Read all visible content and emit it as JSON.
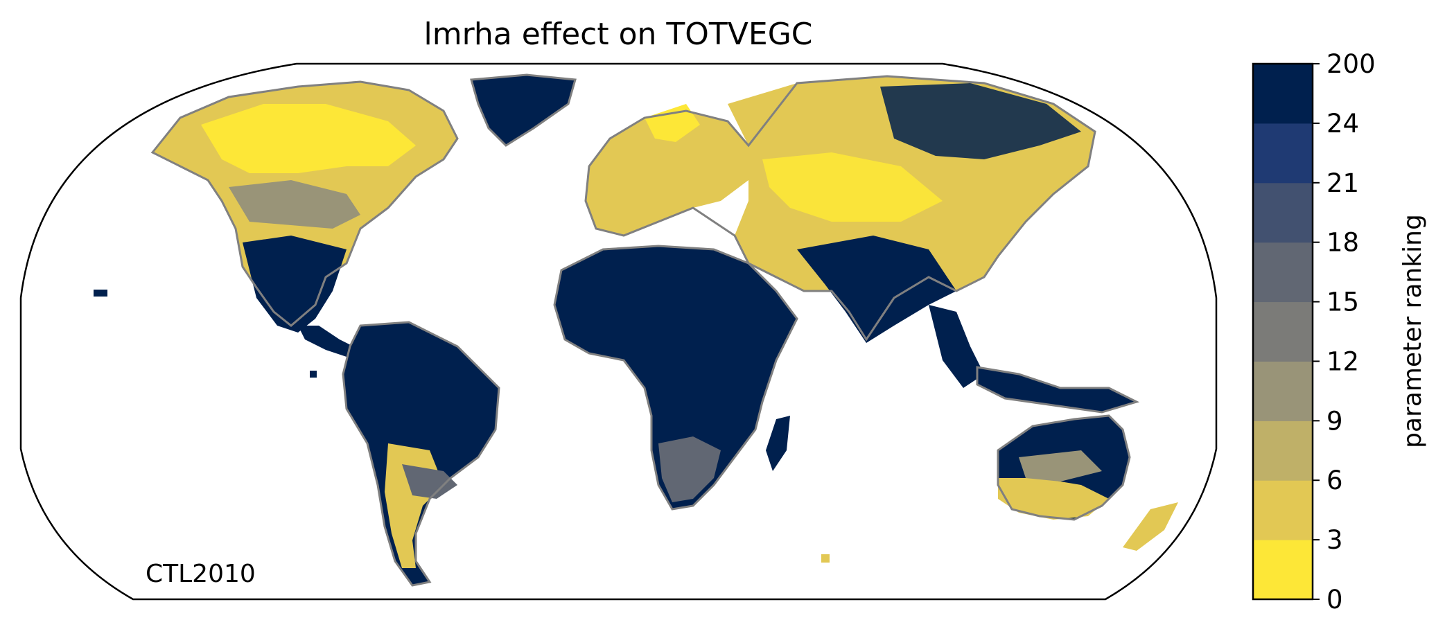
{
  "title": "lmrha effect on TOTVEGC",
  "corner_label": "CTL2010",
  "colorbar": {
    "label": "parameter ranking",
    "ticks": [
      "0",
      "3",
      "6",
      "9",
      "12",
      "15",
      "18",
      "21",
      "24",
      "200"
    ],
    "colors": [
      "#fde737",
      "#e2c854",
      "#bfb068",
      "#999478",
      "#7b7b78",
      "#616773",
      "#425170",
      "#1f3a73",
      "#00204e"
    ]
  },
  "map": {
    "projection": "Robinson",
    "land_color_default": "#00204e",
    "coastline_color": "#808080"
  }
}
